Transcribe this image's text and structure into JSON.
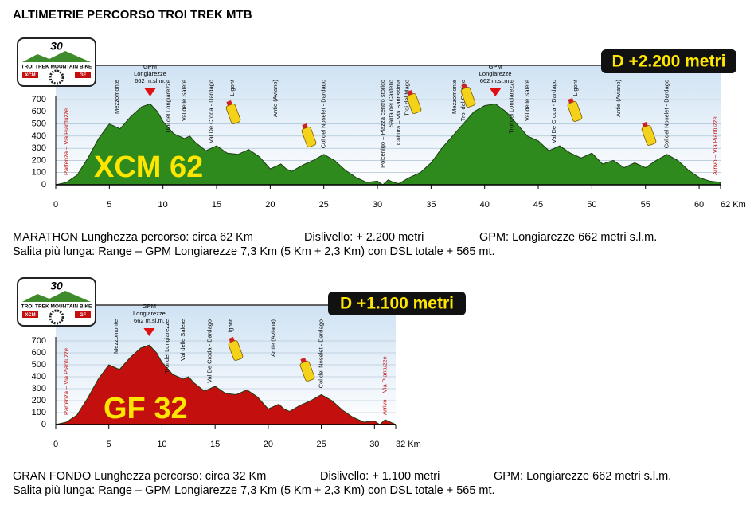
{
  "title": "ALTIMETRIE PERCORSO TROI TREK MTB",
  "logo": {
    "number": "30",
    "name": "TROI TREK MOUNTAIN BIKE",
    "left": "XCM",
    "right": "GF"
  },
  "chart_data": [
    {
      "type": "area",
      "label": "XCM 62",
      "badge": "D +2.200 metri",
      "color": "#2f8a1e",
      "x": [
        0,
        1,
        2,
        3,
        4,
        5,
        5.5,
        6,
        7,
        8,
        8.8,
        9.5,
        10,
        11,
        12,
        12.5,
        13,
        14,
        15,
        16,
        17,
        18,
        19,
        20,
        21,
        21.5,
        22,
        23,
        24,
        25,
        26,
        27,
        28,
        29,
        30,
        30.5,
        31,
        31.5,
        32,
        33,
        34,
        35,
        36,
        37,
        38,
        39,
        40,
        41,
        42,
        43,
        44,
        45,
        46,
        47,
        48,
        49,
        50,
        51,
        52,
        53,
        54,
        55,
        56,
        57,
        58,
        59,
        60,
        61,
        62
      ],
      "values": [
        0,
        20,
        80,
        220,
        380,
        500,
        480,
        460,
        560,
        640,
        665,
        600,
        520,
        420,
        380,
        400,
        350,
        280,
        320,
        260,
        250,
        290,
        230,
        130,
        170,
        130,
        110,
        160,
        200,
        250,
        200,
        120,
        60,
        20,
        30,
        0,
        40,
        20,
        10,
        60,
        100,
        180,
        300,
        400,
        500,
        600,
        650,
        665,
        600,
        500,
        400,
        360,
        280,
        320,
        260,
        220,
        260,
        170,
        200,
        140,
        180,
        140,
        200,
        250,
        200,
        120,
        60,
        30,
        20
      ],
      "xlim": [
        0,
        62
      ],
      "ylim": [
        0,
        700
      ],
      "xticks": [
        0,
        5,
        10,
        15,
        20,
        25,
        30,
        35,
        40,
        45,
        50,
        55,
        60,
        {
          "value": 62,
          "label": "62 Km"
        }
      ],
      "yticks": [
        0,
        100,
        200,
        300,
        400,
        500,
        600,
        700
      ],
      "peaks": [
        {
          "x": 8.8,
          "lines": [
            "GPM",
            "Longiarezze",
            "662 m.sl.m."
          ]
        },
        {
          "x": 41,
          "lines": [
            "GPM",
            "Longiarezze",
            "662 m.sl.m."
          ]
        }
      ],
      "annotations": [
        {
          "x": 1,
          "text": "Partenza – Via Piantuzze"
        },
        {
          "x": 5.7,
          "text": "Mezzomonte"
        },
        {
          "x": 10.5,
          "text": "Troi del Longiarezze"
        },
        {
          "x": 12,
          "text": "Val delle Salere"
        },
        {
          "x": 14.5,
          "text": "Val De Croda - Dardago"
        },
        {
          "x": 16.5,
          "text": "Ligont"
        },
        {
          "x": 20.5,
          "text": "Antie (Aviano)"
        },
        {
          "x": 25,
          "text": "Col del Noselet - Dardago"
        },
        {
          "x": 30.5,
          "text": "Polcenigo – Piazza centro storico"
        },
        {
          "x": 31.3,
          "text": "Salita del Castello"
        },
        {
          "x": 32,
          "text": "Coltura – Via Santissima"
        },
        {
          "x": 32.8,
          "text": "Troi del Mago"
        },
        {
          "x": 37.2,
          "text": "Mezzomonte"
        },
        {
          "x": 38,
          "text": "Troi del Castigo"
        },
        {
          "x": 42.5,
          "text": "Troi del Longiarezze"
        },
        {
          "x": 44,
          "text": "Val delle Salere"
        },
        {
          "x": 46.5,
          "text": "Val De Croda - Dardago"
        },
        {
          "x": 48.5,
          "text": "Ligont"
        },
        {
          "x": 52.5,
          "text": "Antie (Aviano)"
        },
        {
          "x": 57,
          "text": "Col del Noselet - Dardago"
        },
        {
          "x": 61.5,
          "text": "Arrivo – Via Piantuzze"
        }
      ]
    },
    {
      "type": "area",
      "label": "GF 32",
      "badge": "D +1.100 metri",
      "color": "#c40f0f",
      "x": [
        0,
        1,
        2,
        3,
        4,
        5,
        5.5,
        6,
        7,
        8,
        8.8,
        9.5,
        10,
        11,
        12,
        12.5,
        13,
        14,
        15,
        16,
        17,
        18,
        19,
        20,
        21,
        21.5,
        22,
        23,
        24,
        25,
        26,
        27,
        28,
        29,
        30,
        30.5,
        31,
        31.5,
        32
      ],
      "values": [
        0,
        20,
        80,
        220,
        380,
        500,
        480,
        460,
        560,
        640,
        665,
        600,
        520,
        420,
        380,
        400,
        350,
        280,
        320,
        260,
        250,
        290,
        230,
        130,
        170,
        130,
        110,
        160,
        200,
        250,
        200,
        120,
        60,
        20,
        30,
        0,
        40,
        20,
        0
      ],
      "xlim": [
        0,
        32
      ],
      "ylim": [
        0,
        700
      ],
      "xticks": [
        0,
        5,
        10,
        15,
        20,
        25,
        30,
        {
          "value": 32,
          "label": "32 Km"
        }
      ],
      "yticks": [
        0,
        100,
        200,
        300,
        400,
        500,
        600,
        700
      ],
      "peaks": [
        {
          "x": 8.8,
          "lines": [
            "GPM",
            "Longiarezze",
            "662 m.sl.m."
          ]
        }
      ],
      "annotations": [
        {
          "x": 1,
          "text": "Partenza – Via Piantuzze"
        },
        {
          "x": 5.7,
          "text": "Mezzomonte"
        },
        {
          "x": 10.5,
          "text": "Troi del Longiarezze"
        },
        {
          "x": 12,
          "text": "Val delle Salere"
        },
        {
          "x": 14.5,
          "text": "Val De Croda - Dardago"
        },
        {
          "x": 16.5,
          "text": "Ligont"
        },
        {
          "x": 20.5,
          "text": "Antie (Aviano)"
        },
        {
          "x": 25,
          "text": "Col del Noselet - Dardago"
        },
        {
          "x": 31,
          "text": "Arrivo – Via Piantuzze"
        }
      ]
    }
  ],
  "descriptions": [
    {
      "line1": [
        "MARATHON Lunghezza percorso: circa 62 Km",
        "Dislivello: + 2.200 metri",
        "GPM: Longiarezze 662 metri s.l.m."
      ],
      "line2": "Salita più lunga: Range – GPM Longiarezze 7,3 Km (5 Km + 2,3 Km) con DSL totale + 565 mt."
    },
    {
      "line1": [
        "GRAN FONDO Lunghezza percorso: circa 32 Km",
        "Dislivello: + 1.100 metri",
        "GPM: Longiarezze 662 metri s.l.m."
      ],
      "line2": "Salita più lunga: Range – GPM Longiarezze 7,3 Km (5 Km + 2,3 Km) con DSL totale + 565 mt."
    }
  ]
}
